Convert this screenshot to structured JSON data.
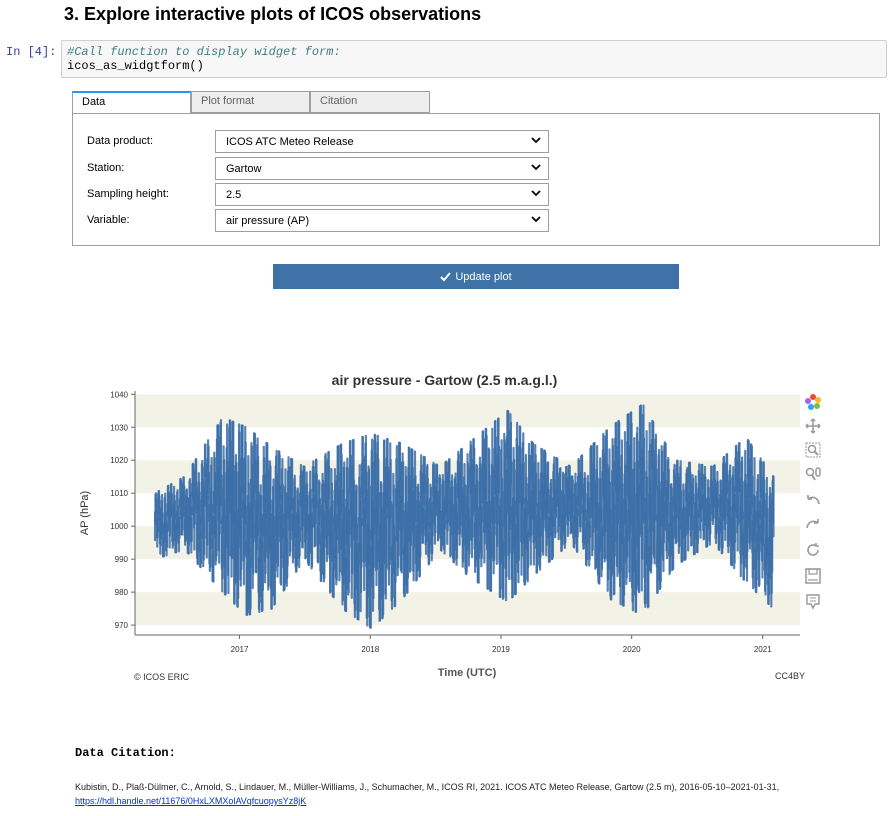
{
  "page": {
    "heading": "3. Explore interactive plots of ICOS observations"
  },
  "cell": {
    "prompt": "In [4]:",
    "comment": "#Call function to display widget form:",
    "code": "icos_as_widgtform()"
  },
  "tabs": [
    {
      "label": "Data",
      "active": true
    },
    {
      "label": "Plot format",
      "active": false
    },
    {
      "label": "Citation",
      "active": false
    }
  ],
  "form": {
    "fields": [
      {
        "label": "Data product:",
        "value": "ICOS ATC Meteo Release"
      },
      {
        "label": "Station:",
        "value": "Gartow"
      },
      {
        "label": "Sampling height:",
        "value": "2.5"
      },
      {
        "label": "Variable:",
        "value": "air pressure (AP)"
      }
    ],
    "update_label": "Update plot"
  },
  "chart_data": {
    "type": "scatter",
    "title": "air pressure  -  Gartow (2.5 m.a.g.l.)",
    "xlabel": "Time (UTC)",
    "ylabel": "AP (hPa)",
    "xlim": [
      "2016-03-15",
      "2021-04-15"
    ],
    "ylim": [
      967,
      1041
    ],
    "yticks": [
      970,
      980,
      990,
      1000,
      1010,
      1020,
      1030,
      1040
    ],
    "xticks": [
      "2017",
      "2018",
      "2019",
      "2020",
      "2021"
    ],
    "color": "#3d6fa8",
    "background_bands": "#f2f2e6",
    "envelope": [
      {
        "date": "2016-05-10",
        "low": 990,
        "high": 1010
      },
      {
        "date": "2016-08-01",
        "low": 993,
        "high": 1015
      },
      {
        "date": "2016-11-15",
        "low": 980,
        "high": 1033
      },
      {
        "date": "2017-01-20",
        "low": 973,
        "high": 1030
      },
      {
        "date": "2017-04-01",
        "low": 975,
        "high": 1024
      },
      {
        "date": "2017-07-01",
        "low": 990,
        "high": 1018
      },
      {
        "date": "2017-10-15",
        "low": 975,
        "high": 1025
      },
      {
        "date": "2018-01-05",
        "low": 969,
        "high": 1028
      },
      {
        "date": "2018-04-01",
        "low": 978,
        "high": 1025
      },
      {
        "date": "2018-07-15",
        "low": 993,
        "high": 1018
      },
      {
        "date": "2018-10-01",
        "low": 985,
        "high": 1025
      },
      {
        "date": "2019-01-20",
        "low": 977,
        "high": 1035
      },
      {
        "date": "2019-04-01",
        "low": 985,
        "high": 1025
      },
      {
        "date": "2019-07-15",
        "low": 995,
        "high": 1018
      },
      {
        "date": "2019-11-01",
        "low": 978,
        "high": 1030
      },
      {
        "date": "2020-02-01",
        "low": 973,
        "high": 1037
      },
      {
        "date": "2020-05-01",
        "low": 988,
        "high": 1020
      },
      {
        "date": "2020-08-15",
        "low": 995,
        "high": 1018
      },
      {
        "date": "2020-11-15",
        "low": 983,
        "high": 1027
      },
      {
        "date": "2021-01-31",
        "low": 975,
        "high": 1015
      }
    ]
  },
  "toolbar": [
    "bokeh-logo-icon",
    "pan-icon",
    "box-zoom-icon",
    "wheel-zoom-icon",
    "undo-icon",
    "redo-icon",
    "reset-icon",
    "save-icon",
    "hover-icon"
  ],
  "credits": {
    "left": "© ICOS ERIC",
    "right": "CC4BY"
  },
  "citation": {
    "heading": "Data Citation:",
    "text": "Kubistin, D., Plaß-Dülmer, C., Arnold, S., Lindauer, M., Müller-Williams, J., Schumacher, M., ICOS RI, 2021. ICOS ATC Meteo Release, Gartow (2.5 m), 2016-05-10–2021-01-31,",
    "link": "https://hdl.handle.net/11676/0HxLXMXolAVqfcuopysYz8jK"
  }
}
